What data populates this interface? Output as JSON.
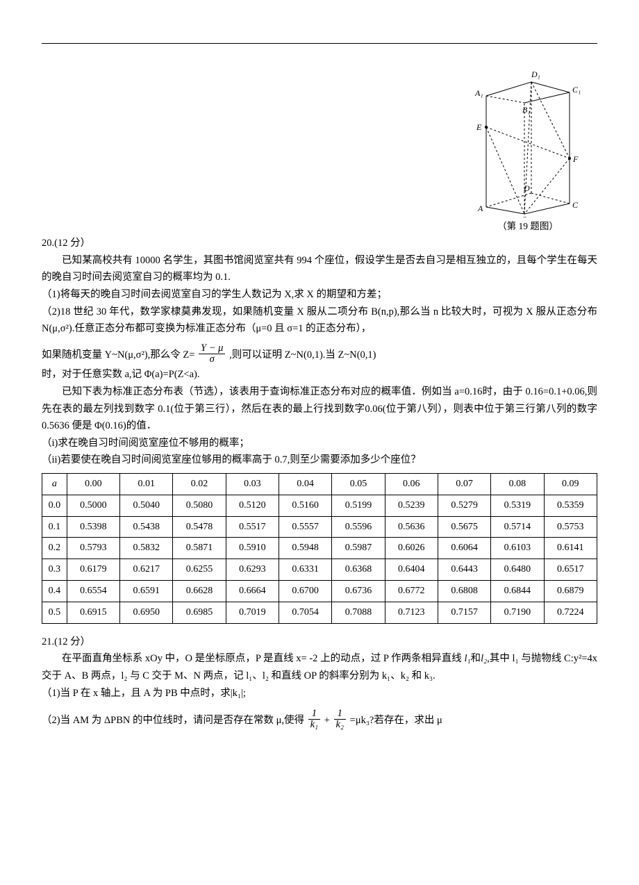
{
  "figure": {
    "caption": "（第 19 题图）",
    "labels": {
      "A": "A",
      "B": "B",
      "C": "C",
      "D": "D",
      "A1": "A₁",
      "B1": "B₁",
      "C1": "C₁",
      "D1": "D₁",
      "E": "E",
      "F": "F"
    },
    "stroke": "#000000",
    "dash": "3,3",
    "linewidth": 1
  },
  "q20": {
    "heading": "20.(12 分）",
    "p1": "已知某高校共有 10000 名学生，其图书馆阅览室共有 994 个座位，假设学生是否去自习是相互独立的，且每个学生在每天的晚自习时间去阅览室自习的概率均为 0.1.",
    "p2": "（1)将每天的晚自习时间去阅览室自习的学生人数记为 X,求 X 的期望和方差；",
    "p3": "（2)18 世纪 30 年代，数学家棣莫弗发现，如果随机变量 X 服从二项分布 B(n,p),那么当 n 比较大时，可视为 X 服从正态分布 N(μ,σ²).任意正态分布都可变换为标准正态分布（μ=0 且 σ=1 的正态分布），",
    "p4a": "如果随机变量 Y~N(μ,σ²),那么令 Z= ",
    "frac1_num": "Y − μ",
    "frac1_den": "σ",
    "p4b": " ,则可以证明 Z~N(0,1).当 Z~N(0,1)",
    "p5": "时，对于任意实数 a,记 Φ(a)=P(Z<a).",
    "p6": "已知下表为标准正态分布表（节选），该表用于查询标准正态分布对应的概率值．例如当 a=0.16时，由于 0.16=0.1+0.06,则先在表的最左列找到数字 0.1(位于第三行），然后在表的最上行找到数字0.06(位于第八列），则表中位于第三行第八列的数字 0.5636 便是 Φ(0.16)的值．",
    "p7": "（i)求在晚自习时间阅览室座位不够用的概率；",
    "p8": "（ii)若要使在晚自习时间阅览室座位够用的概率高于 0.7,则至少需要添加多少个座位？"
  },
  "ztable": {
    "alpha": "a",
    "col_headers": [
      "0.00",
      "0.01",
      "0.02",
      "0.03",
      "0.04",
      "0.05",
      "0.06",
      "0.07",
      "0.08",
      "0.09"
    ],
    "rows": [
      {
        "h": "0.0",
        "v": [
          "0.5000",
          "0.5040",
          "0.5080",
          "0.5120",
          "0.5160",
          "0.5199",
          "0.5239",
          "0.5279",
          "0.5319",
          "0.5359"
        ]
      },
      {
        "h": "0.1",
        "v": [
          "0.5398",
          "0.5438",
          "0.5478",
          "0.5517",
          "0.5557",
          "0.5596",
          "0.5636",
          "0.5675",
          "0.5714",
          "0.5753"
        ]
      },
      {
        "h": "0.2",
        "v": [
          "0.5793",
          "0.5832",
          "0.5871",
          "0.5910",
          "0.5948",
          "0.5987",
          "0.6026",
          "0.6064",
          "0.6103",
          "0.6141"
        ]
      },
      {
        "h": "0.3",
        "v": [
          "0.6179",
          "0.6217",
          "0.6255",
          "0.6293",
          "0.6331",
          "0.6368",
          "0.6404",
          "0.6443",
          "0.6480",
          "0.6517"
        ]
      },
      {
        "h": "0.4",
        "v": [
          "0.6554",
          "0.6591",
          "0.6628",
          "0.6664",
          "0.6700",
          "0.6736",
          "0.6772",
          "0.6808",
          "0.6844",
          "0.6879"
        ]
      },
      {
        "h": "0.5",
        "v": [
          "0.6915",
          "0.6950",
          "0.6985",
          "0.7019",
          "0.7054",
          "0.7088",
          "0.7123",
          "0.7157",
          "0.7190",
          "0.7224"
        ]
      }
    ]
  },
  "q21": {
    "heading": "21.(12 分）",
    "p1a": "在平面直角坐标系 xOy 中，O 是坐标原点，P 是直线 x= -2 上的动点，过 P 作两条相异直线 ",
    "l1": "l₁",
    "p1b": "和",
    "l2": "l₂",
    "p1c": ",其中 l₁ 与抛物线 C:y²=4x 交于 A、B 两点，l₂ 与 C 交于 M、N 两点，记 l₁、l₂ 和直线 OP 的斜率分别为 k₁、k₂ 和 k₃.",
    "p2": "（1)当 P 在 x 轴上，且 A 为 PB 中点时，求|k₁|;",
    "p3a": "（2)当 AM 为 ΔPBN 的中位线时，请问是否存在常数 μ,使得",
    "frac2a_num": "1",
    "frac2a_den": "k₁",
    "plus": " + ",
    "frac2b_num": "1",
    "frac2b_den": "k₂",
    "p3b": " =μk₃?若存在，求出 μ"
  }
}
